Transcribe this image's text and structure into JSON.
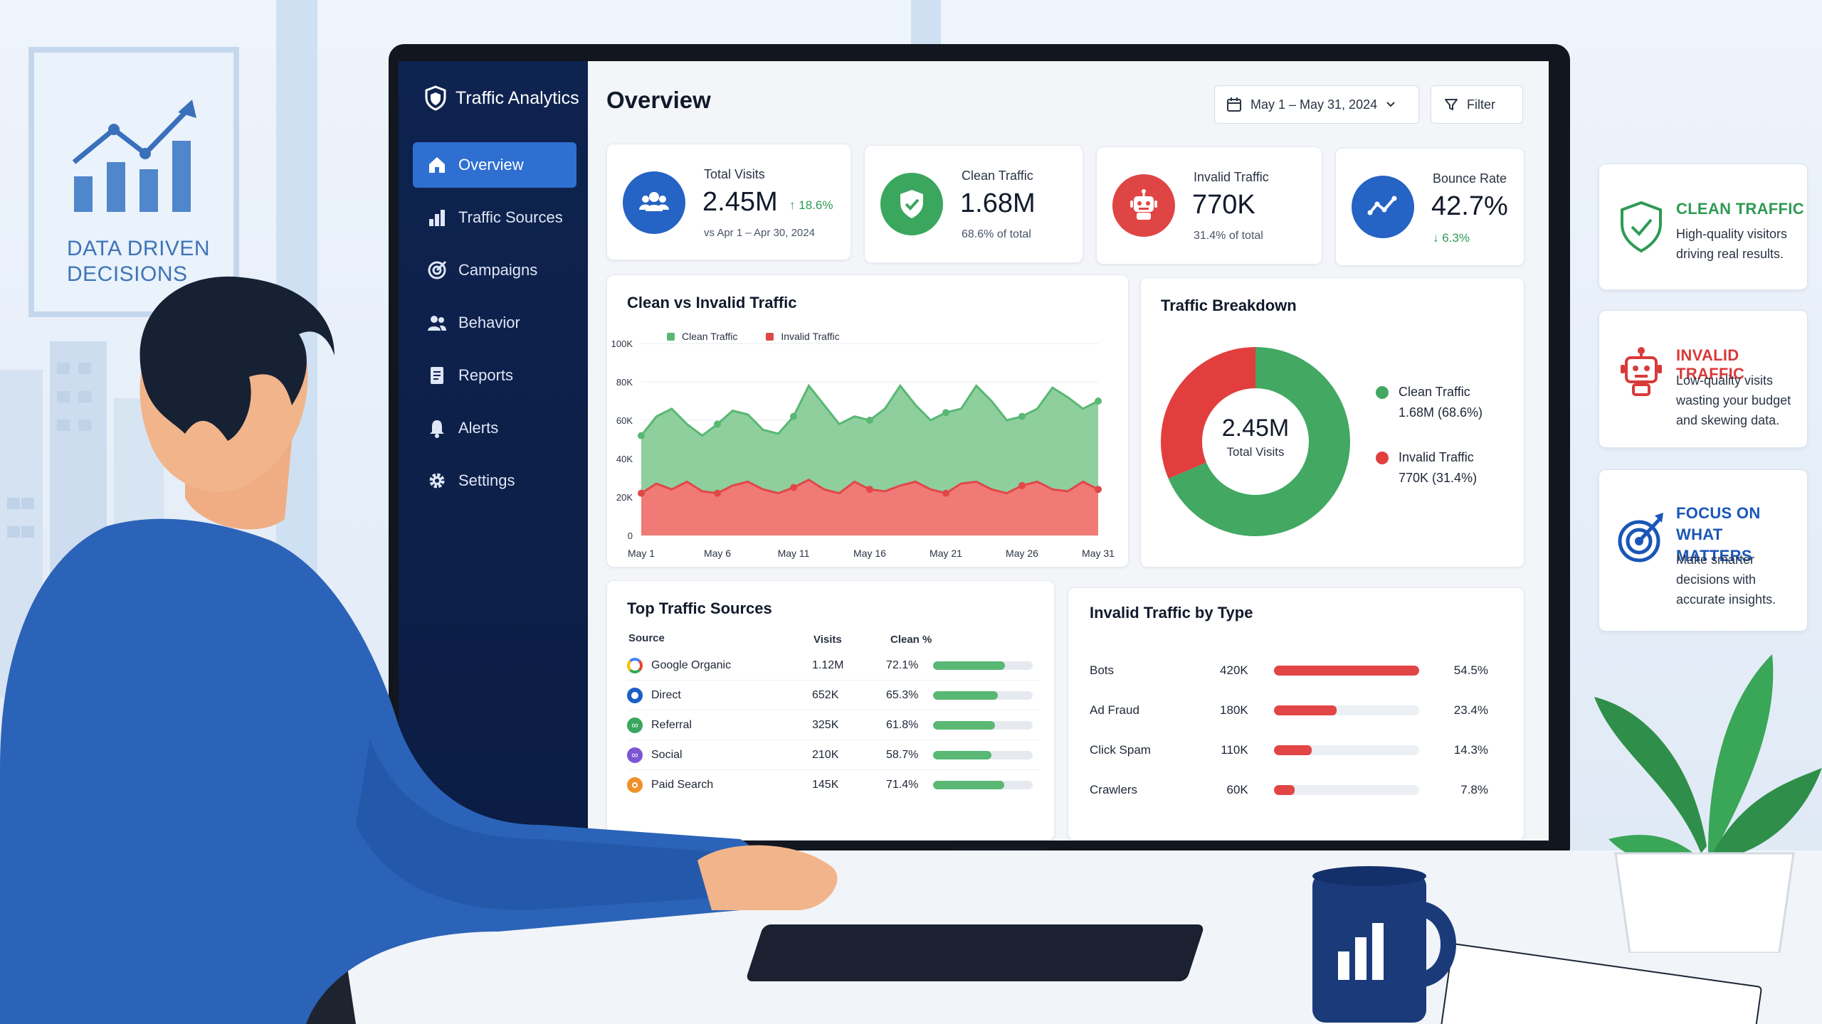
{
  "poster": {
    "text": "DATA DRIVEN DECISIONS"
  },
  "app": {
    "brand": "Traffic Analytics",
    "nav": [
      {
        "label": "Overview",
        "icon": "home-icon",
        "active": true
      },
      {
        "label": "Traffic Sources",
        "icon": "bar-chart-icon"
      },
      {
        "label": "Campaigns",
        "icon": "target-icon"
      },
      {
        "label": "Behavior",
        "icon": "users-icon"
      },
      {
        "label": "Reports",
        "icon": "document-icon"
      },
      {
        "label": "Alerts",
        "icon": "bell-icon"
      },
      {
        "label": "Settings",
        "icon": "gear-icon"
      }
    ]
  },
  "header": {
    "title": "Overview",
    "date_range": "May 1 – May 31, 2024",
    "filter_label": "Filter"
  },
  "kpis": [
    {
      "label": "Total Visits",
      "value": "2.45M",
      "delta": "18.6%",
      "sub": "vs Apr 1 – Apr 30, 2024",
      "icon": "users-icon",
      "color": "#2563c4"
    },
    {
      "label": "Clean Traffic",
      "value": "1.68M",
      "sub": "68.6% of total",
      "icon": "shield-check-icon",
      "color": "#3aa65e"
    },
    {
      "label": "Invalid Traffic",
      "value": "770K",
      "sub": "31.4% of total",
      "icon": "robot-icon",
      "color": "#e04545"
    },
    {
      "label": "Bounce Rate",
      "value": "42.7%",
      "delta": "6.3%",
      "icon": "trend-line-icon",
      "color": "#2563c4"
    }
  ],
  "area_chart": {
    "title": "Clean vs Invalid Traffic",
    "legend": [
      "Clean Traffic",
      "Invalid Traffic"
    ],
    "y_ticks": [
      "100K",
      "80K",
      "60K",
      "40K",
      "20K",
      "0"
    ],
    "x_ticks": [
      "May 1",
      "May 6",
      "May 11",
      "May 16",
      "May 21",
      "May 26",
      "May 31"
    ]
  },
  "chart_data": [
    {
      "type": "area",
      "title": "Clean vs Invalid Traffic",
      "xlabel": "",
      "ylabel": "",
      "ylim": [
        0,
        100000
      ],
      "x": [
        1,
        2,
        3,
        4,
        5,
        6,
        7,
        8,
        9,
        10,
        11,
        12,
        13,
        14,
        15,
        16,
        17,
        18,
        19,
        20,
        21,
        22,
        23,
        24,
        25,
        26,
        27,
        28,
        29,
        30,
        31
      ],
      "x_tick_labels": {
        "1": "May 1",
        "6": "May 6",
        "11": "May 11",
        "16": "May 16",
        "21": "May 21",
        "26": "May 26",
        "31": "May 31"
      },
      "legend_position": "top-left",
      "grid": true,
      "series": [
        {
          "name": "Clean Traffic",
          "color": "#58b874",
          "fill": "#8fcf9e",
          "values": [
            52000,
            62000,
            66000,
            58000,
            52000,
            58000,
            65000,
            63000,
            55000,
            53000,
            62000,
            78000,
            68000,
            58000,
            62000,
            60000,
            66000,
            78000,
            68000,
            60000,
            64000,
            66000,
            78000,
            70000,
            60000,
            62000,
            66000,
            77000,
            72000,
            66000,
            70000
          ]
        },
        {
          "name": "Invalid Traffic",
          "color": "#e04848",
          "fill": "#f07a76",
          "values": [
            22000,
            27000,
            24000,
            28000,
            23000,
            22000,
            26000,
            28000,
            24000,
            22000,
            25000,
            29000,
            24000,
            22000,
            28000,
            24000,
            23000,
            26000,
            28000,
            24000,
            22000,
            27000,
            28000,
            24000,
            22000,
            26000,
            28000,
            24000,
            23000,
            28000,
            24000
          ]
        }
      ]
    },
    {
      "type": "pie",
      "title": "Traffic Breakdown",
      "center_value": "2.45M",
      "center_label": "Total Visits",
      "slices": [
        {
          "name": "Clean Traffic",
          "value": 68.6,
          "label": "1.68M (68.6%)",
          "color": "#43a862"
        },
        {
          "name": "Invalid Traffic",
          "value": 31.4,
          "label": "770K (31.4%)",
          "color": "#e23e3e"
        }
      ]
    },
    {
      "type": "table",
      "title": "Top Traffic Sources",
      "columns": [
        "Source",
        "Visits",
        "Clean %"
      ],
      "rows": [
        {
          "source": "Google Organic",
          "visits": "1.12M",
          "clean_pct": "72.1%",
          "clean_value": 72.1,
          "icon_color": "#4285f4"
        },
        {
          "source": "Direct",
          "visits": "652K",
          "clean_pct": "65.3%",
          "clean_value": 65.3,
          "icon_color": "#1a5fc8"
        },
        {
          "source": "Referral",
          "visits": "325K",
          "clean_pct": "61.8%",
          "clean_value": 61.8,
          "icon_color": "#3aa65e"
        },
        {
          "source": "Social",
          "visits": "210K",
          "clean_pct": "58.7%",
          "clean_value": 58.7,
          "icon_color": "#7b55d4"
        },
        {
          "source": "Paid Search",
          "visits": "145K",
          "clean_pct": "71.4%",
          "clean_value": 71.4,
          "icon_color": "#f0902a"
        }
      ]
    },
    {
      "type": "bar",
      "title": "Invalid Traffic by Type",
      "categories": [
        "Bots",
        "Ad Fraud",
        "Click Spam",
        "Crawlers"
      ],
      "counts": [
        "420K",
        "180K",
        "110K",
        "60K"
      ],
      "percents": [
        "54.5%",
        "23.4%",
        "14.3%",
        "7.8%"
      ],
      "values": [
        54.5,
        23.4,
        14.3,
        7.8
      ],
      "color": "#e24545"
    }
  ],
  "info_cards": [
    {
      "title": "CLEAN TRAFFIC",
      "body": "High-quality visitors driving real results.",
      "color": "#2f9a55",
      "icon": "shield-check-icon"
    },
    {
      "title": "INVALID TRAFFIC",
      "body": "Low-quality visits wasting your budget and skewing data.",
      "color": "#d93a3a",
      "icon": "robot-icon"
    },
    {
      "title": "FOCUS ON WHAT MATTERS",
      "body": "Make smarter decisions with accurate insights.",
      "color": "#1a56b8",
      "icon": "target-icon"
    }
  ]
}
